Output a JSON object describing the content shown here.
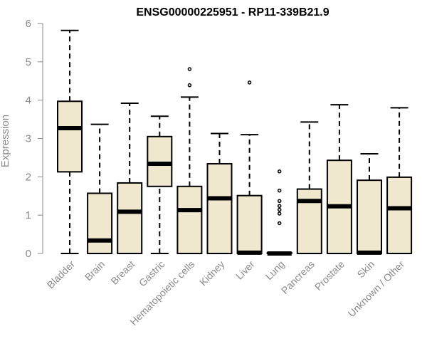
{
  "chart_data": {
    "type": "boxplot",
    "title": "ENSG00000225951 - RP11-339B21.9",
    "ylabel": "Expression",
    "xlabel": "",
    "ylim": [
      0,
      6
    ],
    "yticks": [
      0,
      1,
      2,
      3,
      4,
      5,
      6
    ],
    "grid": false,
    "box_fill": "#efe8cf",
    "box_stroke": "#000000",
    "categories": [
      "Bladder",
      "Brain",
      "Breast",
      "Gastric",
      "Hematopoietic cells",
      "Kidney",
      "Liver",
      "Lung",
      "Pancreas",
      "Prostate",
      "Skin",
      "Unknown / Other"
    ],
    "boxes": [
      {
        "min": 0,
        "q1": 2.13,
        "median": 3.27,
        "q3": 3.97,
        "max": 5.82,
        "outliers": []
      },
      {
        "min": 0,
        "q1": 0,
        "median": 0.34,
        "q3": 1.57,
        "max": 3.37,
        "outliers": []
      },
      {
        "min": 0,
        "q1": 0,
        "median": 1.09,
        "q3": 1.84,
        "max": 3.92,
        "outliers": []
      },
      {
        "min": 0,
        "q1": 1.75,
        "median": 2.34,
        "q3": 3.05,
        "max": 3.58,
        "outliers": []
      },
      {
        "min": 0,
        "q1": 0,
        "median": 1.13,
        "q3": 1.75,
        "max": 4.08,
        "outliers": [
          4.39,
          4.81
        ]
      },
      {
        "min": 0,
        "q1": 0,
        "median": 1.44,
        "q3": 2.34,
        "max": 3.13,
        "outliers": []
      },
      {
        "min": 0,
        "q1": 0,
        "median": 0.02,
        "q3": 1.51,
        "max": 3.1,
        "outliers": [
          4.46
        ]
      },
      {
        "min": 0,
        "q1": 0,
        "median": 0,
        "q3": 0.02,
        "max": 0.02,
        "outliers": [
          0.79,
          1.04,
          1.14,
          1.24,
          1.37,
          1.64,
          2.14
        ]
      },
      {
        "min": 0,
        "q1": 0,
        "median": 1.37,
        "q3": 1.68,
        "max": 3.43,
        "outliers": []
      },
      {
        "min": 0,
        "q1": 0,
        "median": 1.23,
        "q3": 2.43,
        "max": 3.88,
        "outliers": []
      },
      {
        "min": 0,
        "q1": 0,
        "median": 0.02,
        "q3": 1.91,
        "max": 2.6,
        "outliers": []
      },
      {
        "min": 0,
        "q1": 0,
        "median": 1.18,
        "q3": 1.99,
        "max": 3.8,
        "outliers": []
      }
    ]
  }
}
